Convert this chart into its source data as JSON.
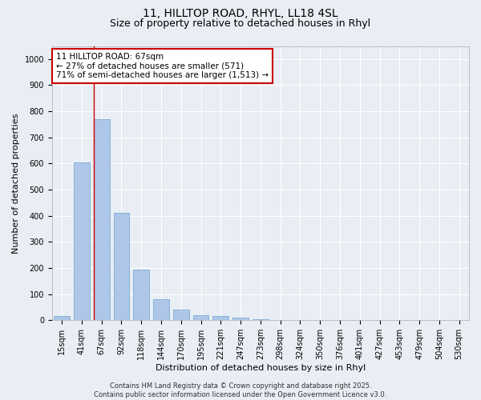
{
  "title_line1": "11, HILLTOP ROAD, RHYL, LL18 4SL",
  "title_line2": "Size of property relative to detached houses in Rhyl",
  "xlabel": "Distribution of detached houses by size in Rhyl",
  "ylabel": "Number of detached properties",
  "categories": [
    "15sqm",
    "41sqm",
    "67sqm",
    "92sqm",
    "118sqm",
    "144sqm",
    "170sqm",
    "195sqm",
    "221sqm",
    "247sqm",
    "273sqm",
    "298sqm",
    "324sqm",
    "350sqm",
    "376sqm",
    "401sqm",
    "427sqm",
    "453sqm",
    "479sqm",
    "504sqm",
    "530sqm"
  ],
  "values": [
    15,
    605,
    770,
    410,
    195,
    80,
    40,
    20,
    15,
    10,
    5,
    0,
    0,
    0,
    0,
    0,
    0,
    0,
    0,
    0,
    0
  ],
  "bar_color": "#aec6e8",
  "bar_edge_color": "#7aadd4",
  "marker_bin_index": 2,
  "marker_color": "#cc0000",
  "annotation_text": "11 HILLTOP ROAD: 67sqm\n← 27% of detached houses are smaller (571)\n71% of semi-detached houses are larger (1,513) →",
  "annotation_box_color": "#ffffff",
  "annotation_edge_color": "#cc0000",
  "ylim": [
    0,
    1050
  ],
  "yticks": [
    0,
    100,
    200,
    300,
    400,
    500,
    600,
    700,
    800,
    900,
    1000
  ],
  "background_color": "#e8eef4",
  "grid_color": "#ffffff",
  "footer_line1": "Contains HM Land Registry data © Crown copyright and database right 2025.",
  "footer_line2": "Contains public sector information licensed under the Open Government Licence v3.0.",
  "title_fontsize": 10,
  "subtitle_fontsize": 9,
  "tick_fontsize": 7,
  "ylabel_fontsize": 8,
  "xlabel_fontsize": 8,
  "annotation_fontsize": 7.5,
  "footer_fontsize": 6
}
